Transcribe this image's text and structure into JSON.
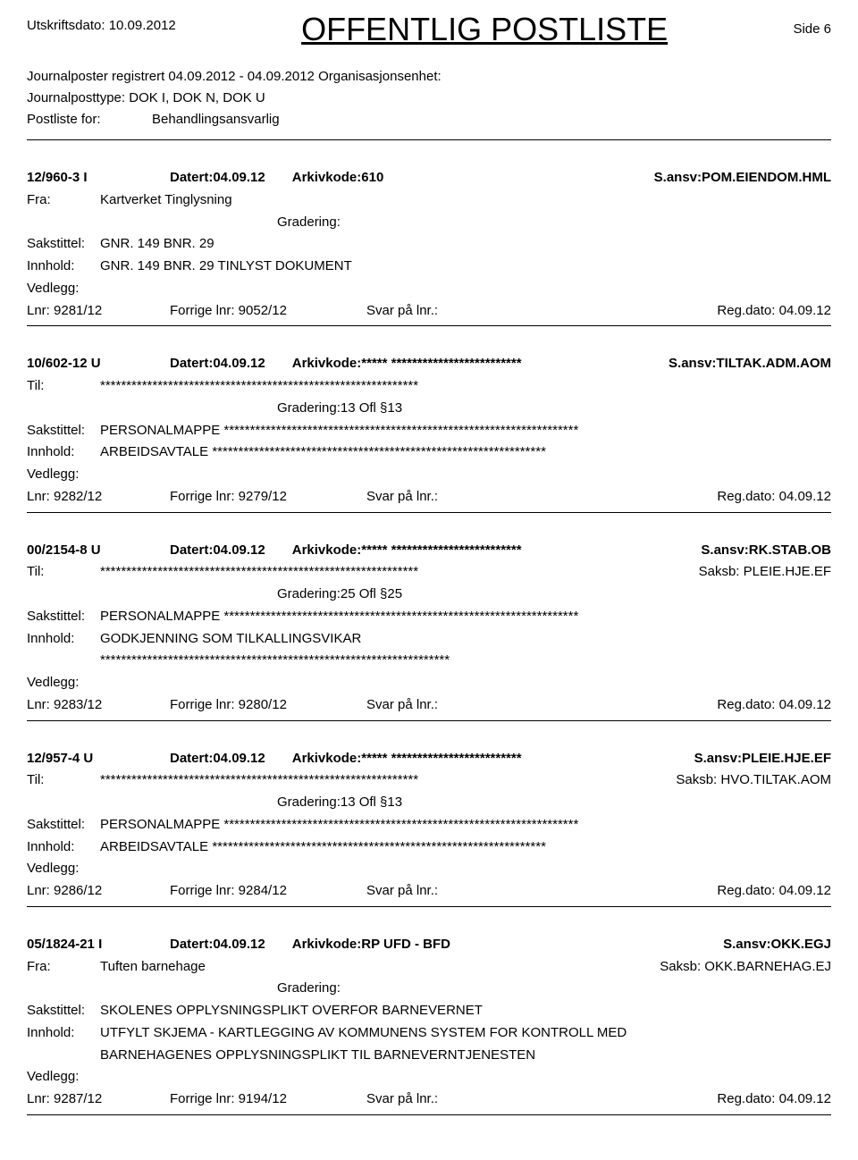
{
  "header": {
    "print_date_label": "Utskriftsdato:",
    "print_date": "10.09.2012",
    "title": "OFFENTLIG POSTLISTE",
    "page_label": "Side",
    "page_num": "6",
    "reg_label": "Journalposter registrert",
    "reg_range": "04.09.2012 - 04.09.2012",
    "org_label": "Organisasjonsenhet:",
    "jtype_label": "Journalposttype:",
    "jtype_val": "DOK I, DOK N, DOK U",
    "postliste_label": "Postliste for:",
    "postliste_val": "Behandlingsansvarlig"
  },
  "labels": {
    "datert": "Datert:",
    "arkivkode": "Arkivkode:",
    "sansv": "S.ansv:",
    "fra": "Fra:",
    "til": "Til:",
    "saksb": "Saksb:",
    "gradering": "Gradering:",
    "sakstittel": "Sakstittel:",
    "innhold": "Innhold:",
    "vedlegg": "Vedlegg:",
    "lnr": "Lnr:",
    "forrige": "Forrige lnr:",
    "svar": "Svar på lnr.:",
    "regdato": "Reg.dato:"
  },
  "entries": [
    {
      "caseid": "12/960-3  I",
      "datert": "04.09.12",
      "arkivkode": "610",
      "sansv": "POM.EIENDOM.HML",
      "party_label": "Fra:",
      "party": "Kartverket Tinglysning",
      "saksb": "",
      "gradering": "",
      "sakstittel": "GNR. 149 BNR. 29",
      "innhold": "GNR. 149 BNR. 29  TINLYST DOKUMENT",
      "innhold2": "",
      "innhold3": "",
      "lnr": "9281/12",
      "forrige": "9052/12",
      "regdato": "04.09.12"
    },
    {
      "caseid": "10/602-12  U",
      "datert": "04.09.12",
      "arkivkode": "***** *************************",
      "sansv": "TILTAK.ADM.AOM",
      "party_label": "Til:",
      "party": "*************************************************************",
      "saksb": "",
      "gradering": "13 Ofl §13",
      "sakstittel": "PERSONALMAPPE  ********************************************************************",
      "innhold": "ARBEIDSAVTALE  ****************************************************************",
      "innhold2": "",
      "innhold3": "",
      "lnr": "9282/12",
      "forrige": "9279/12",
      "regdato": "04.09.12"
    },
    {
      "caseid": "00/2154-8  U",
      "datert": "04.09.12",
      "arkivkode": "***** *************************",
      "sansv": "RK.STAB.OB",
      "party_label": "Til:",
      "party": "*************************************************************",
      "saksb": "PLEIE.HJE.EF",
      "gradering": "25 Ofl §25",
      "sakstittel": "PERSONALMAPPE  ********************************************************************",
      "innhold": "GODKJENNING SOM TILKALLINGSVIKAR",
      "innhold2": "*******************************************************************",
      "innhold3": "",
      "lnr": "9283/12",
      "forrige": "9280/12",
      "regdato": "04.09.12"
    },
    {
      "caseid": "12/957-4  U",
      "datert": "04.09.12",
      "arkivkode": "***** *************************",
      "sansv": "PLEIE.HJE.EF",
      "party_label": "Til:",
      "party": "*************************************************************",
      "saksb": "HVO.TILTAK.AOM",
      "gradering": "13 Ofl §13",
      "sakstittel": "PERSONALMAPPE  ********************************************************************",
      "innhold": "ARBEIDSAVTALE  ****************************************************************",
      "innhold2": "",
      "innhold3": "",
      "lnr": "9286/12",
      "forrige": "9284/12",
      "regdato": "04.09.12"
    },
    {
      "caseid": "05/1824-21  I",
      "datert": "04.09.12",
      "arkivkode": "RP UFD - BFD",
      "sansv": "OKK.EGJ",
      "party_label": "Fra:",
      "party": "Tuften barnehage",
      "saksb": "OKK.BARNEHAG.EJ",
      "gradering": "",
      "sakstittel": "SKOLENES OPPLYSNINGSPLIKT OVERFOR BARNEVERNET",
      "innhold": "UTFYLT SKJEMA - KARTLEGGING AV KOMMUNENS SYSTEM FOR KONTROLL MED",
      "innhold2": "BARNEHAGENES OPPLYSNINGSPLIKT TIL BARNEVERNTJENESTEN",
      "innhold3": "",
      "lnr": "9287/12",
      "forrige": "9194/12",
      "regdato": "04.09.12"
    }
  ]
}
